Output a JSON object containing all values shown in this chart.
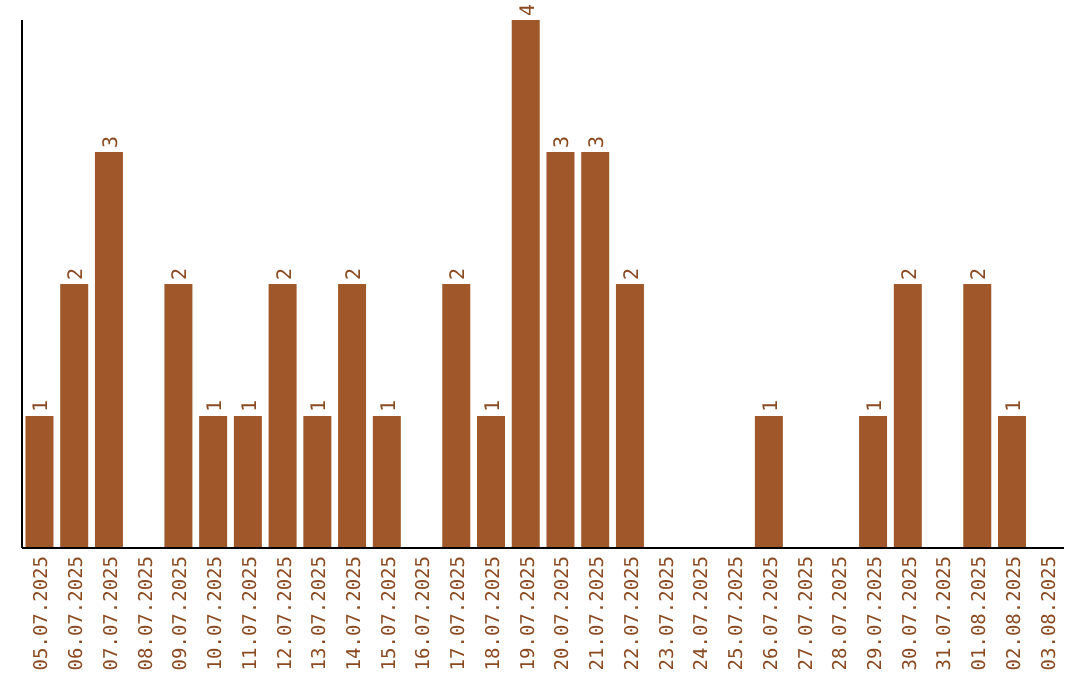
{
  "chart_data": {
    "type": "bar",
    "categories": [
      "05.07.2025",
      "06.07.2025",
      "07.07.2025",
      "08.07.2025",
      "09.07.2025",
      "10.07.2025",
      "11.07.2025",
      "12.07.2025",
      "13.07.2025",
      "14.07.2025",
      "15.07.2025",
      "16.07.2025",
      "17.07.2025",
      "18.07.2025",
      "19.07.2025",
      "20.07.2025",
      "21.07.2025",
      "22.07.2025",
      "23.07.2025",
      "24.07.2025",
      "25.07.2025",
      "26.07.2025",
      "27.07.2025",
      "28.07.2025",
      "29.07.2025",
      "30.07.2025",
      "31.07.2025",
      "01.08.2025",
      "02.08.2025",
      "03.08.2025"
    ],
    "values": [
      1,
      2,
      3,
      0,
      2,
      1,
      1,
      2,
      1,
      2,
      1,
      0,
      2,
      1,
      4,
      3,
      3,
      2,
      0,
      0,
      0,
      1,
      0,
      0,
      1,
      2,
      0,
      2,
      1,
      0
    ],
    "value_labels": [
      "1",
      "2",
      "3",
      null,
      "2",
      "1",
      "1",
      "2",
      "1",
      "2",
      "1",
      null,
      "2",
      "1",
      "4",
      "3",
      "3",
      "2",
      null,
      null,
      null,
      "1",
      null,
      null,
      "1",
      "2",
      null,
      "2",
      "1",
      null
    ],
    "color": "#a0572a",
    "tick_labels": "x",
    "grid": false,
    "legend": false
  }
}
